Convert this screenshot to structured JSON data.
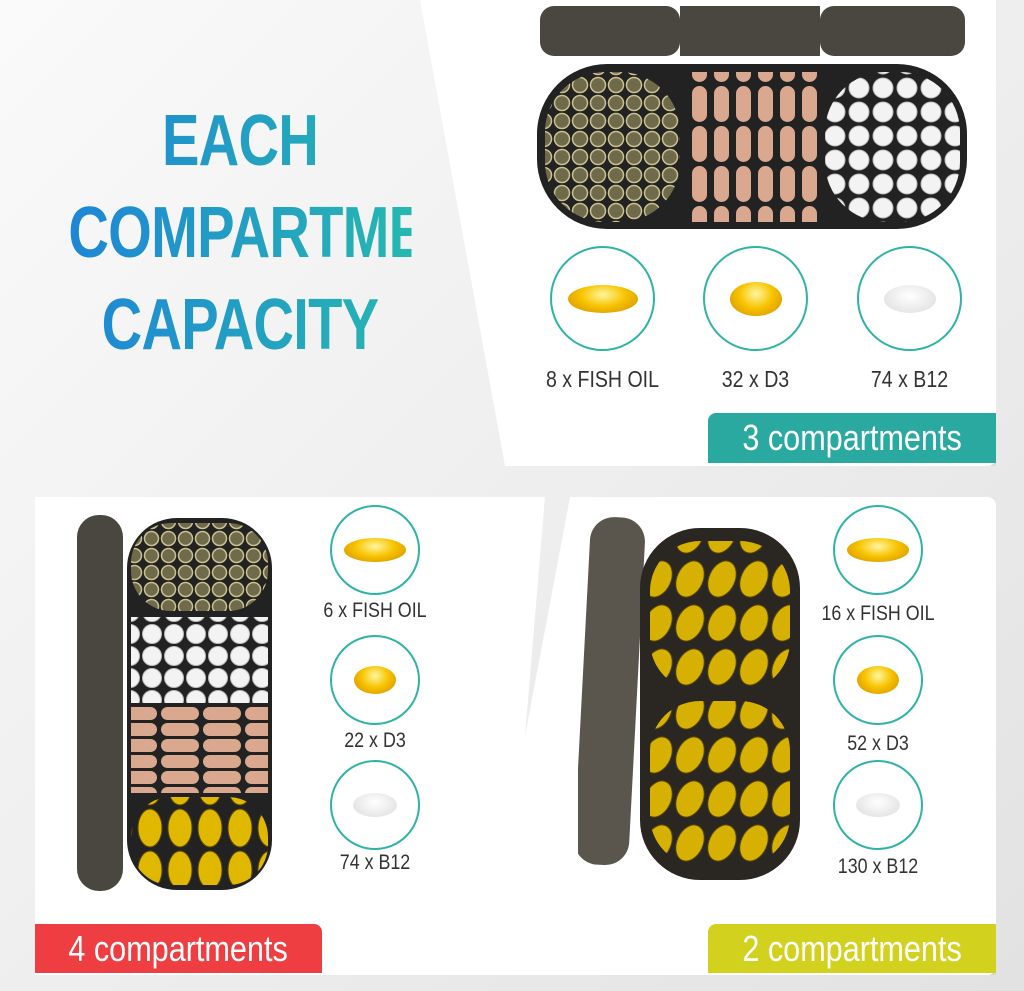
{
  "headline": {
    "line1": "EACH",
    "line2": "COMPARTMENT",
    "line3": "CAPACITY"
  },
  "panels": [
    {
      "badge": "3 compartments",
      "badge_color": "#2aa9a0",
      "items": [
        {
          "label": "8 x FISH OIL",
          "icon": "fish-oil-softgel"
        },
        {
          "label": "32 x D3",
          "icon": "d3-softgel"
        },
        {
          "label": "74 x B12",
          "icon": "b12-tablet"
        }
      ]
    },
    {
      "badge": "4 compartments",
      "badge_color": "#ef3e42",
      "items": [
        {
          "label": "6 x FISH OIL",
          "icon": "fish-oil-softgel"
        },
        {
          "label": "22 x D3",
          "icon": "d3-softgel"
        },
        {
          "label": "74 x B12",
          "icon": "b12-tablet"
        }
      ]
    },
    {
      "badge": "2 compartments",
      "badge_color": "#d2d11e",
      "items": [
        {
          "label": "16 x FISH OIL",
          "icon": "fish-oil-softgel"
        },
        {
          "label": "52 x D3",
          "icon": "d3-softgel"
        },
        {
          "label": "130 x B12",
          "icon": "b12-tablet"
        }
      ]
    }
  ]
}
